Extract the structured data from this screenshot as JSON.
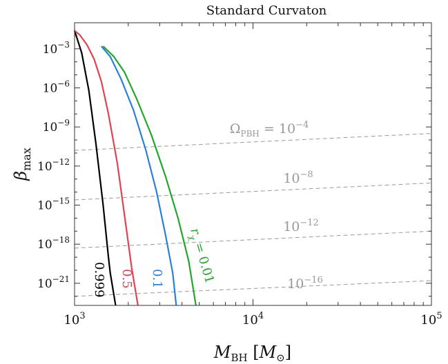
{
  "chart_data": {
    "type": "line",
    "title": "Standard Curvaton",
    "xlabel": {
      "symbol": "M",
      "subscript": "BH",
      "units_symbol": "M",
      "units_subscript": "⊙"
    },
    "ylabel": {
      "symbol": "β",
      "subscript": "max"
    },
    "x_scale": "log",
    "y_scale": "log",
    "xlim_log10": [
      3,
      5
    ],
    "ylim_log10": [
      -22.7,
      -1.0
    ],
    "x_ticks": [
      {
        "log10": 3,
        "base": "10",
        "exp": "3"
      },
      {
        "log10": 4,
        "base": "10",
        "exp": "4"
      },
      {
        "log10": 5,
        "base": "10",
        "exp": "5"
      }
    ],
    "y_ticks": [
      {
        "log10": -3,
        "base": "10",
        "exp": "−3"
      },
      {
        "log10": -6,
        "base": "10",
        "exp": "−6"
      },
      {
        "log10": -9,
        "base": "10",
        "exp": "−9"
      },
      {
        "log10": -12,
        "base": "10",
        "exp": "−12"
      },
      {
        "log10": -15,
        "base": "10",
        "exp": "−15"
      },
      {
        "log10": -18,
        "base": "10",
        "exp": "−18"
      },
      {
        "log10": -21,
        "base": "10",
        "exp": "−21"
      }
    ],
    "series": [
      {
        "name": "r = 0.999",
        "label": "0.999",
        "color": "#000000",
        "points_log10": [
          [
            3.0,
            -1.6
          ],
          [
            3.04,
            -3.3
          ],
          [
            3.08,
            -6.2
          ],
          [
            3.12,
            -10.3
          ],
          [
            3.16,
            -15.0
          ],
          [
            3.19,
            -19.0
          ],
          [
            3.2,
            -20.2
          ],
          [
            3.23,
            -22.7
          ]
        ]
      },
      {
        "name": "r = 0.5",
        "label": "0.5",
        "color": "#e0424f",
        "points_log10": [
          [
            3.0,
            -1.6
          ],
          [
            3.03,
            -1.95
          ],
          [
            3.07,
            -2.7
          ],
          [
            3.11,
            -3.8
          ],
          [
            3.15,
            -5.5
          ],
          [
            3.19,
            -8.0
          ],
          [
            3.24,
            -11.8
          ],
          [
            3.28,
            -15.8
          ],
          [
            3.32,
            -19.8
          ],
          [
            3.355,
            -22.7
          ]
        ]
      },
      {
        "name": "r = 0.1",
        "label": "0.1",
        "color": "#2b7fd8",
        "points_log10": [
          [
            3.15,
            -2.8
          ],
          [
            3.2,
            -3.6
          ],
          [
            3.26,
            -5.3
          ],
          [
            3.33,
            -7.7
          ],
          [
            3.4,
            -10.8
          ],
          [
            3.46,
            -14.0
          ],
          [
            3.51,
            -17.3
          ],
          [
            3.55,
            -20.2
          ],
          [
            3.57,
            -22.7
          ]
        ]
      },
      {
        "name": "r = 0.01",
        "label": "r = 0.01",
        "label_symbol": "r",
        "label_subscript": "χ",
        "label_value": " = 0.01",
        "color": "#22a52b",
        "points_log10": [
          [
            3.16,
            -2.8
          ],
          [
            3.22,
            -3.6
          ],
          [
            3.28,
            -4.8
          ],
          [
            3.35,
            -6.9
          ],
          [
            3.43,
            -9.6
          ],
          [
            3.51,
            -12.8
          ],
          [
            3.58,
            -16.0
          ],
          [
            3.64,
            -19.3
          ],
          [
            3.68,
            -22.7
          ]
        ]
      }
    ],
    "reference_lines": [
      {
        "name": "Omega_PBH = 1e-4",
        "label_prefix": "Ω",
        "label_sub": "PBH",
        "label_eq": " = ",
        "label_base": "10",
        "label_exp": "−4",
        "color": "#999999",
        "style": "dashed",
        "y_at_xmin": -10.8,
        "y_at_xmax": -9.5
      },
      {
        "name": "Omega_PBH = 1e-8",
        "label_base": "10",
        "label_exp": "−8",
        "color": "#999999",
        "style": "dashed",
        "y_at_xmin": -14.6,
        "y_at_xmax": -13.3
      },
      {
        "name": "Omega_PBH = 1e-12",
        "label_base": "10",
        "label_exp": "−12",
        "color": "#999999",
        "style": "dashed",
        "y_at_xmin": -18.3,
        "y_at_xmax": -17.0
      },
      {
        "name": "Omega_PBH = 1e-16",
        "label_base": "10",
        "label_exp": "−16",
        "color": "#999999",
        "style": "dashed",
        "y_at_xmin": -22.0,
        "y_at_xmax": -20.8
      }
    ]
  }
}
